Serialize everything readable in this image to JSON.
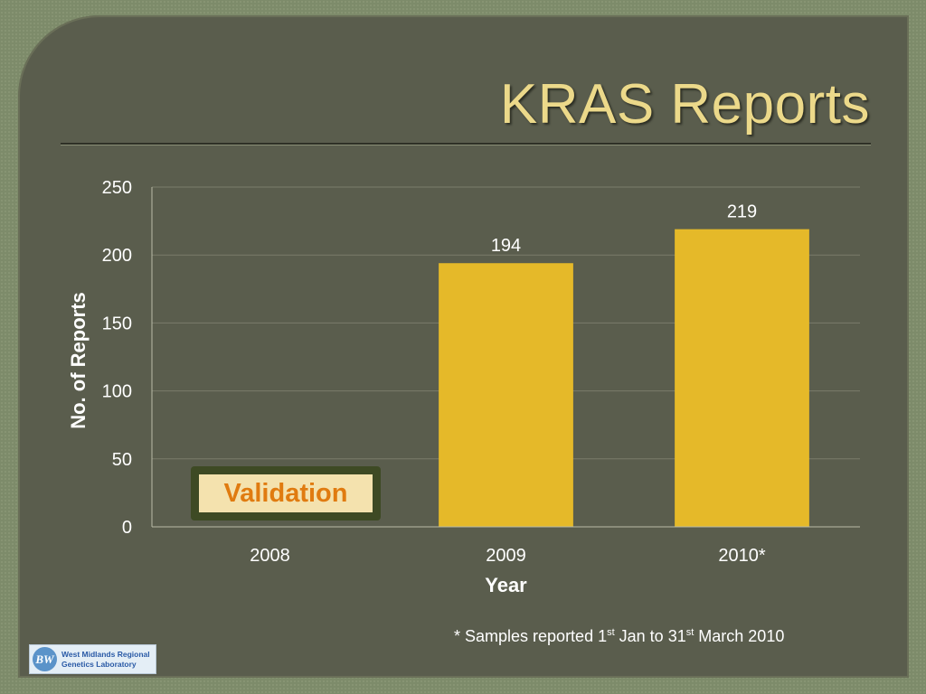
{
  "slide": {
    "title": "KRAS Reports",
    "footnote": {
      "prefix": "* Samples reported 1",
      "sup1": "st",
      "middle": " Jan to 31",
      "sup2": "st",
      "suffix": " March 2010"
    },
    "logo": {
      "mark": "BW",
      "line1": "West Midlands Regional",
      "line2": "Genetics Laboratory"
    },
    "callout": "Validation",
    "colors": {
      "bar": "#e5b929",
      "background": "#5a5d4d",
      "title": "#ecd98a",
      "callout_text": "#e07b10",
      "callout_fill": "#f4e2ae",
      "callout_border": "#3e4a24"
    }
  },
  "chart_data": {
    "type": "bar",
    "categories": [
      "2008",
      "2009",
      "2010*"
    ],
    "values": [
      0,
      194,
      219
    ],
    "data_labels": [
      "",
      "194",
      "219"
    ],
    "title": "",
    "xlabel": "Year",
    "ylabel": "No. of Reports",
    "ylim": [
      0,
      250
    ],
    "yticks": [
      0,
      50,
      100,
      150,
      200,
      250
    ],
    "grid": true,
    "legend": "none"
  }
}
